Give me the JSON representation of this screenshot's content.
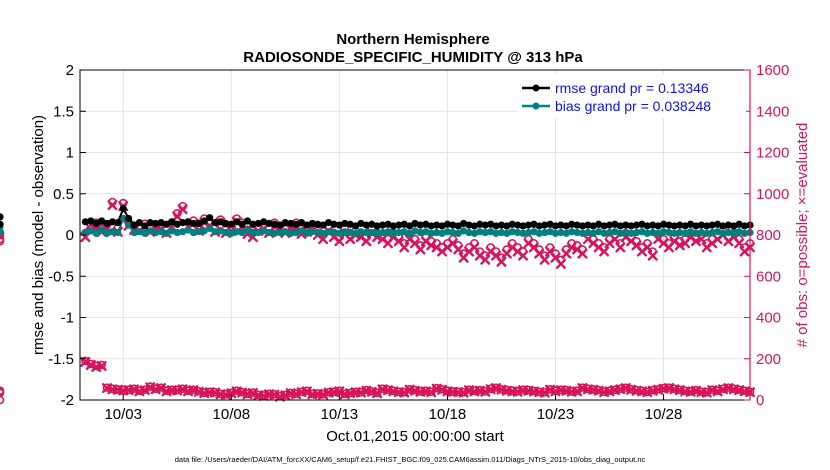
{
  "chart_data": {
    "type": "line",
    "title_line1": "Northern Hemisphere",
    "title_line2": "RADIOSONDE_SPECIFIC_HUMIDITY @ 313 hPa",
    "ylabel_left": "rmse and bias (model - observation)",
    "ylabel_right": "# of obs: o=possible; ×=evaluated",
    "xlabel": "Oct.01,2015 00:00:00 start",
    "footer": "data file: /Users/raeder/DAI/ATM_forcXX/CAM6_setup/f.e21.FHIST_BGC.f09_025.CAM6assim.011/Diags_NTrS_2015-10/obs_diag_output.nc",
    "x_range_days": [
      1,
      32
    ],
    "x_ticks": [
      {
        "label": "10/03",
        "day": 3
      },
      {
        "label": "10/08",
        "day": 8
      },
      {
        "label": "10/13",
        "day": 13
      },
      {
        "label": "10/18",
        "day": 18
      },
      {
        "label": "10/23",
        "day": 23
      },
      {
        "label": "10/28",
        "day": 28
      }
    ],
    "ylim_left": [
      -2,
      2
    ],
    "yticks_left": [
      "2",
      "1.5",
      "1",
      "0.5",
      "0",
      "-0.5",
      "-1",
      "-1.5",
      "-2"
    ],
    "ylim_right": [
      0,
      1600
    ],
    "yticks_right": [
      "1600",
      "1400",
      "1200",
      "1000",
      "800",
      "600",
      "400",
      "200",
      "0"
    ],
    "legend": [
      {
        "label": "rmse grand pr = 0.13346",
        "color": "#000000"
      },
      {
        "label": "bias grand pr = 0.038248",
        "color": "#008080"
      }
    ],
    "colors": {
      "rmse": "#000000",
      "bias": "#008080",
      "obs": "#d6145c",
      "obs_label": "#d6145c"
    },
    "series": {
      "time_days": [
        1.25,
        1.5,
        1.75,
        2.0,
        2.25,
        2.5,
        2.75,
        3.0,
        3.25,
        3.5,
        3.75,
        4.0,
        4.25,
        4.5,
        4.75,
        5.0,
        5.25,
        5.5,
        5.75,
        6.0,
        6.25,
        6.5,
        6.75,
        7.0,
        7.25,
        7.5,
        7.75,
        8.0,
        8.25,
        8.5,
        8.75,
        9.0,
        9.25,
        9.5,
        9.75,
        10.0,
        10.25,
        10.5,
        10.75,
        11.0,
        11.25,
        11.5,
        11.75,
        12.0,
        12.25,
        12.5,
        12.75,
        13.0,
        13.25,
        13.5,
        13.75,
        14.0,
        14.25,
        14.5,
        14.75,
        15.0,
        15.25,
        15.5,
        15.75,
        16.0,
        16.25,
        16.5,
        16.75,
        17.0,
        17.25,
        17.5,
        17.75,
        18.0,
        18.25,
        18.5,
        18.75,
        19.0,
        19.25,
        19.5,
        19.75,
        20.0,
        20.25,
        20.5,
        20.75,
        21.0,
        21.25,
        21.5,
        21.75,
        22.0,
        22.25,
        22.5,
        22.75,
        23.0,
        23.25,
        23.5,
        23.75,
        24.0,
        24.25,
        24.5,
        24.75,
        25.0,
        25.25,
        25.5,
        25.75,
        26.0,
        26.25,
        26.5,
        26.75,
        27.0,
        27.25,
        27.5,
        27.75,
        28.0,
        28.25,
        28.5,
        28.75,
        29.0,
        29.25,
        29.5,
        29.75,
        30.0,
        30.25,
        30.5,
        30.75,
        31.0,
        31.25,
        31.5,
        31.75,
        32.0
      ],
      "rmse": [
        0.16,
        0.17,
        0.14,
        0.17,
        0.14,
        0.16,
        0.15,
        0.32,
        0.2,
        0.12,
        0.15,
        0.11,
        0.15,
        0.14,
        0.15,
        0.13,
        0.16,
        0.13,
        0.15,
        0.16,
        0.14,
        0.14,
        0.17,
        0.21,
        0.15,
        0.16,
        0.14,
        0.13,
        0.16,
        0.13,
        0.17,
        0.13,
        0.14,
        0.16,
        0.14,
        0.13,
        0.12,
        0.15,
        0.14,
        0.13,
        0.15,
        0.12,
        0.14,
        0.13,
        0.12,
        0.15,
        0.13,
        0.12,
        0.14,
        0.13,
        0.11,
        0.14,
        0.12,
        0.13,
        0.11,
        0.12,
        0.13,
        0.11,
        0.12,
        0.13,
        0.11,
        0.14,
        0.12,
        0.13,
        0.11,
        0.12,
        0.11,
        0.13,
        0.12,
        0.11,
        0.14,
        0.12,
        0.11,
        0.13,
        0.12,
        0.13,
        0.11,
        0.12,
        0.11,
        0.13,
        0.12,
        0.11,
        0.12,
        0.13,
        0.11,
        0.12,
        0.13,
        0.11,
        0.12,
        0.11,
        0.13,
        0.12,
        0.11,
        0.12,
        0.11,
        0.13,
        0.11,
        0.12,
        0.13,
        0.11,
        0.12,
        0.11,
        0.12,
        0.13,
        0.11,
        0.12,
        0.11,
        0.13,
        0.12,
        0.11,
        0.12,
        0.11,
        0.13,
        0.11,
        0.12,
        0.11,
        0.12,
        0.13,
        0.11,
        0.12,
        0.11,
        0.13,
        0.11,
        0.12,
        0.13,
        0.22
      ],
      "bias": [
        0.03,
        0.05,
        0.02,
        0.06,
        0.02,
        0.04,
        0.03,
        0.2,
        0.12,
        0.03,
        0.04,
        0.02,
        0.05,
        0.03,
        0.04,
        0.02,
        0.05,
        0.03,
        0.04,
        0.06,
        0.03,
        0.04,
        0.05,
        0.08,
        0.04,
        0.05,
        0.03,
        0.02,
        0.04,
        0.03,
        0.06,
        0.02,
        0.03,
        0.05,
        0.03,
        0.02,
        0.03,
        0.04,
        0.02,
        0.03,
        0.05,
        0.02,
        0.04,
        0.03,
        0.02,
        0.04,
        0.03,
        0.02,
        0.04,
        0.03,
        0.02,
        0.04,
        0.03,
        0.03,
        0.02,
        0.03,
        0.04,
        0.02,
        0.03,
        0.04,
        0.02,
        0.05,
        0.03,
        0.04,
        0.02,
        0.03,
        0.02,
        0.04,
        0.03,
        0.02,
        0.05,
        0.03,
        0.02,
        0.04,
        0.03,
        0.04,
        0.02,
        0.03,
        0.02,
        0.04,
        0.03,
        0.02,
        0.03,
        0.04,
        0.02,
        0.03,
        0.04,
        0.02,
        0.03,
        0.02,
        0.04,
        0.03,
        0.02,
        0.03,
        0.02,
        0.04,
        0.02,
        0.03,
        0.04,
        0.02,
        0.03,
        0.02,
        0.03,
        0.04,
        0.02,
        0.03,
        0.02,
        0.04,
        0.03,
        0.02,
        0.03,
        0.02,
        0.04,
        0.02,
        0.03,
        0.02,
        0.03,
        0.04,
        0.02,
        0.03,
        0.02,
        0.04,
        0.02,
        0.03,
        0.04,
        0.1
      ],
      "obs_possible": [
        810,
        850,
        860,
        830,
        850,
        960,
        835,
        955,
        860,
        845,
        840,
        855,
        830,
        850,
        845,
        830,
        860,
        905,
        940,
        860,
        870,
        840,
        880,
        860,
        835,
        875,
        830,
        840,
        880,
        860,
        825,
        810,
        840,
        850,
        830,
        860,
        845,
        830,
        850,
        860,
        830,
        840,
        850,
        820,
        800,
        840,
        810,
        790,
        830,
        800,
        820,
        810,
        790,
        830,
        810,
        800,
        780,
        810,
        790,
        760,
        800,
        780,
        750,
        790,
        770,
        760,
        740,
        760,
        780,
        750,
        710,
        740,
        760,
        720,
        700,
        740,
        720,
        690,
        730,
        760,
        740,
        720,
        780,
        760,
        730,
        700,
        740,
        710,
        680,
        730,
        760,
        750,
        730,
        800,
        780,
        760,
        740,
        780,
        800,
        760,
        810,
        790,
        770,
        740,
        760,
        720,
        800,
        780,
        760,
        790,
        770,
        780,
        810,
        790,
        800,
        760,
        780,
        800,
        820,
        790,
        810,
        780,
        740,
        760,
        780,
        800,
        770,
        810
      ],
      "obs_evaluated": [
        790,
        850,
        835,
        815,
        835,
        945,
        815,
        940,
        845,
        825,
        820,
        840,
        815,
        835,
        830,
        810,
        840,
        890,
        925,
        840,
        855,
        820,
        860,
        845,
        815,
        860,
        810,
        820,
        865,
        840,
        805,
        790,
        820,
        830,
        810,
        840,
        825,
        810,
        830,
        840,
        805,
        815,
        830,
        800,
        780,
        820,
        790,
        770,
        805,
        780,
        800,
        790,
        770,
        810,
        790,
        780,
        760,
        790,
        770,
        740,
        780,
        760,
        730,
        770,
        750,
        740,
        720,
        740,
        760,
        730,
        690,
        720,
        740,
        700,
        680,
        720,
        700,
        670,
        710,
        740,
        720,
        700,
        760,
        740,
        710,
        680,
        720,
        690,
        660,
        710,
        740,
        730,
        710,
        780,
        760,
        740,
        720,
        760,
        780,
        740,
        790,
        770,
        750,
        720,
        740,
        700,
        780,
        760,
        740,
        770,
        750,
        760,
        790,
        770,
        780,
        740,
        760,
        780,
        800,
        770,
        790,
        760,
        720,
        740,
        760,
        780,
        750,
        790
      ],
      "obs_low_possible": [
        190,
        175,
        165,
        170,
        60,
        55,
        52,
        48,
        50,
        55,
        45,
        50,
        65,
        55,
        60,
        45,
        50,
        48,
        55,
        45,
        50,
        42,
        35,
        40,
        38,
        30,
        28,
        35,
        45,
        38,
        30,
        36,
        25,
        22,
        30,
        28,
        18,
        25,
        35,
        30,
        40,
        45,
        30,
        32,
        28,
        38,
        40,
        45,
        30,
        35,
        40,
        38,
        48,
        42,
        35,
        55,
        50,
        45,
        40,
        38,
        52,
        48,
        42,
        45,
        40,
        58,
        52,
        45,
        42,
        40,
        38,
        50,
        45,
        48,
        42,
        55,
        60,
        52,
        48,
        45,
        42,
        50,
        48,
        44,
        40,
        38,
        52,
        45,
        50,
        48,
        42,
        45,
        60,
        55,
        52,
        48,
        40,
        45,
        50,
        55,
        60,
        52,
        48,
        45,
        40,
        48,
        52,
        58,
        60,
        55,
        50,
        45,
        42,
        48,
        40,
        38,
        50,
        45,
        55,
        60,
        55,
        50,
        45,
        40,
        38,
        45,
        35,
        0
      ],
      "obs_low_evaluated": [
        185,
        170,
        160,
        165,
        58,
        52,
        50,
        46,
        48,
        52,
        42,
        48,
        62,
        52,
        58,
        42,
        48,
        46,
        52,
        42,
        48,
        40,
        33,
        38,
        36,
        28,
        26,
        33,
        42,
        36,
        28,
        34,
        23,
        20,
        28,
        26,
        16,
        23,
        33,
        28,
        38,
        42,
        28,
        30,
        26,
        36,
        38,
        42,
        28,
        33,
        38,
        36,
        45,
        40,
        33,
        52,
        48,
        42,
        38,
        36,
        50,
        45,
        40,
        42,
        38,
        55,
        50,
        42,
        40,
        38,
        36,
        48,
        42,
        45,
        40,
        52,
        58,
        50,
        45,
        42,
        40,
        48,
        45,
        42,
        38,
        36,
        50,
        42,
        48,
        45,
        40,
        42,
        58,
        52,
        50,
        45,
        38,
        42,
        48,
        52,
        58,
        50,
        45,
        42,
        38,
        45,
        50,
        55,
        58,
        52,
        48,
        42,
        40,
        45,
        38,
        36,
        48,
        42,
        52,
        58,
        52,
        48,
        42,
        38,
        36,
        42,
        33,
        0
      ]
    }
  }
}
